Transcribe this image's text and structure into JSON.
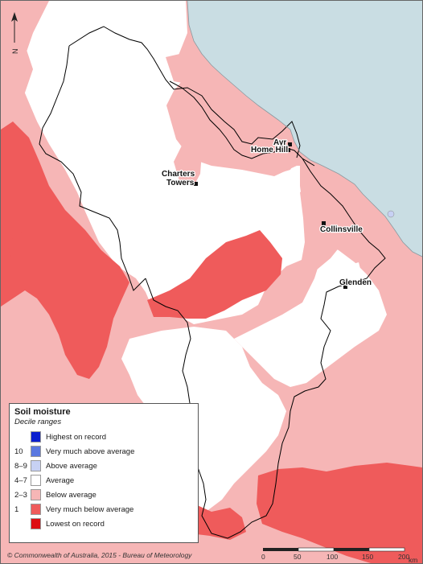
{
  "legend": {
    "title": "Soil moisture",
    "subtitle": "Decile ranges",
    "items": [
      {
        "decile": "",
        "label": "Highest on record",
        "color": "#0a1ecf"
      },
      {
        "decile": "10",
        "label": "Very much above average",
        "color": "#5a78e0"
      },
      {
        "decile": "8–9",
        "label": "Above average",
        "color": "#c7d1f4"
      },
      {
        "decile": "4–7",
        "label": "Average",
        "color": "#ffffff"
      },
      {
        "decile": "2–3",
        "label": "Below average",
        "color": "#f6b6b6"
      },
      {
        "decile": "1",
        "label": "Very much below average",
        "color": "#ef5b5b"
      },
      {
        "decile": "",
        "label": "Lowest on record",
        "color": "#dd0c12"
      }
    ]
  },
  "towns": [
    {
      "name": "Ayr"
    },
    {
      "name": "Home Hill"
    },
    {
      "name": "Charters Towers",
      "lines": [
        "Charters",
        "Towers"
      ]
    },
    {
      "name": "Collinsville"
    },
    {
      "name": "Glenden"
    }
  ],
  "north_label": "N",
  "credit": "© Commonwealth of Australia, 2015 - Bureau of Meteorology",
  "scale": {
    "ticks": [
      "0",
      "50",
      "100",
      "150",
      "200"
    ],
    "unit": "km"
  },
  "colors": {
    "sea": "#c9dde3",
    "below_average": "#f6b6b6",
    "very_much_below": "#ef5b5b",
    "average": "#ffffff",
    "above_average": "#c7d1f4",
    "boundary": "#000000"
  }
}
